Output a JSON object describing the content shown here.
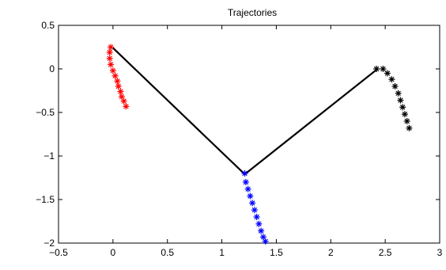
{
  "chart_data": {
    "type": "line",
    "title": "Trajectories",
    "xlabel": "",
    "ylabel": "",
    "xlim": [
      -0.5,
      3
    ],
    "ylim": [
      -2,
      0.5
    ],
    "x_ticks": [
      -0.5,
      0,
      0.5,
      1,
      1.5,
      2,
      2.5,
      3
    ],
    "x_tick_labels": [
      "−0.5",
      "0",
      "0.5",
      "1",
      "1.5",
      "2",
      "2.5",
      "3"
    ],
    "y_ticks": [
      -2,
      -1.5,
      -1,
      -0.5,
      0,
      0.5
    ],
    "y_tick_labels": [
      "−2",
      "−1.5",
      "−1",
      "−0.5",
      "0",
      "0.5"
    ],
    "grid": false,
    "series": [
      {
        "color": "#000000",
        "style": "line",
        "points": [
          [
            0,
            0.24
          ],
          [
            1.21,
            -1.21
          ],
          [
            2.43,
            0
          ]
        ]
      },
      {
        "color": "#ff0000",
        "style": "star-markers",
        "points": [
          [
            -0.02,
            0.25
          ],
          [
            -0.03,
            0.19
          ],
          [
            -0.03,
            0.12
          ],
          [
            -0.02,
            0.05
          ],
          [
            0,
            -0.02
          ],
          [
            0.02,
            -0.08
          ],
          [
            0.04,
            -0.14
          ],
          [
            0.05,
            -0.2
          ],
          [
            0.07,
            -0.26
          ],
          [
            0.08,
            -0.32
          ],
          [
            0.1,
            -0.37
          ],
          [
            0.12,
            -0.43
          ]
        ]
      },
      {
        "color": "#0000ff",
        "style": "star-markers",
        "points": [
          [
            1.21,
            -1.2
          ],
          [
            1.22,
            -1.3
          ],
          [
            1.24,
            -1.38
          ],
          [
            1.26,
            -1.46
          ],
          [
            1.28,
            -1.54
          ],
          [
            1.3,
            -1.62
          ],
          [
            1.32,
            -1.7
          ],
          [
            1.34,
            -1.78
          ],
          [
            1.36,
            -1.86
          ],
          [
            1.38,
            -1.93
          ],
          [
            1.4,
            -1.98
          ]
        ]
      },
      {
        "color": "#000000",
        "style": "star-markers",
        "points": [
          [
            2.42,
            0
          ],
          [
            2.48,
            0
          ],
          [
            2.52,
            -0.05
          ],
          [
            2.56,
            -0.12
          ],
          [
            2.59,
            -0.2
          ],
          [
            2.62,
            -0.28
          ],
          [
            2.64,
            -0.36
          ],
          [
            2.66,
            -0.44
          ],
          [
            2.68,
            -0.52
          ],
          [
            2.7,
            -0.6
          ],
          [
            2.72,
            -0.68
          ]
        ]
      }
    ]
  }
}
